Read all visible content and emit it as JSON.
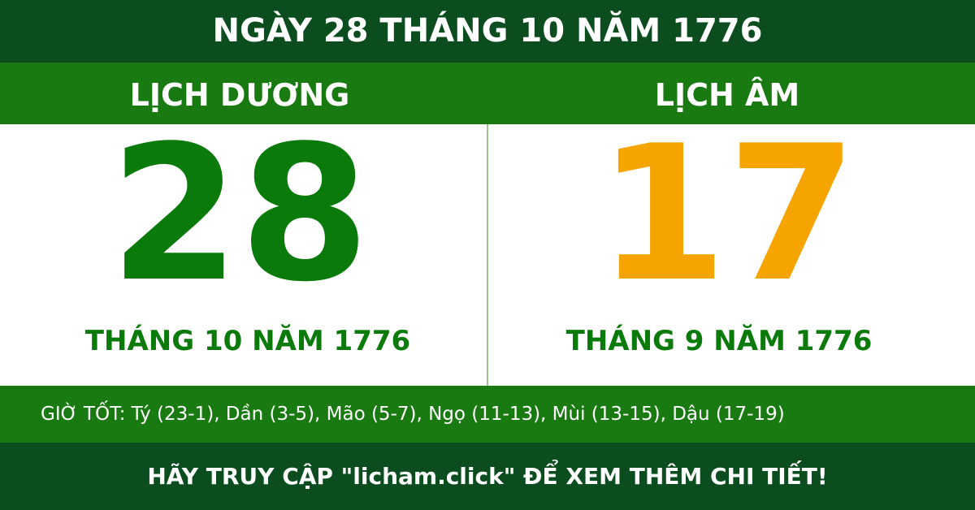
{
  "header": {
    "title": "NGÀY 28 THÁNG 10 NĂM 1776"
  },
  "solar": {
    "label": "LỊCH DƯƠNG",
    "day": "28",
    "month_year": "THÁNG 10 NĂM 1776"
  },
  "lunar": {
    "label": "LỊCH ÂM",
    "day": "17",
    "month_year": "THÁNG 9 NĂM 1776"
  },
  "good_hours": "GIỜ TỐT: Tý (23-1), Dần (3-5), Mão (5-7), Ngọ (11-13), Mùi (13-15), Dậu (17-19)",
  "footer": {
    "text": "HÃY TRUY CẬP \"licham.click\" ĐỂ XEM THÊM CHI TIẾT!"
  }
}
